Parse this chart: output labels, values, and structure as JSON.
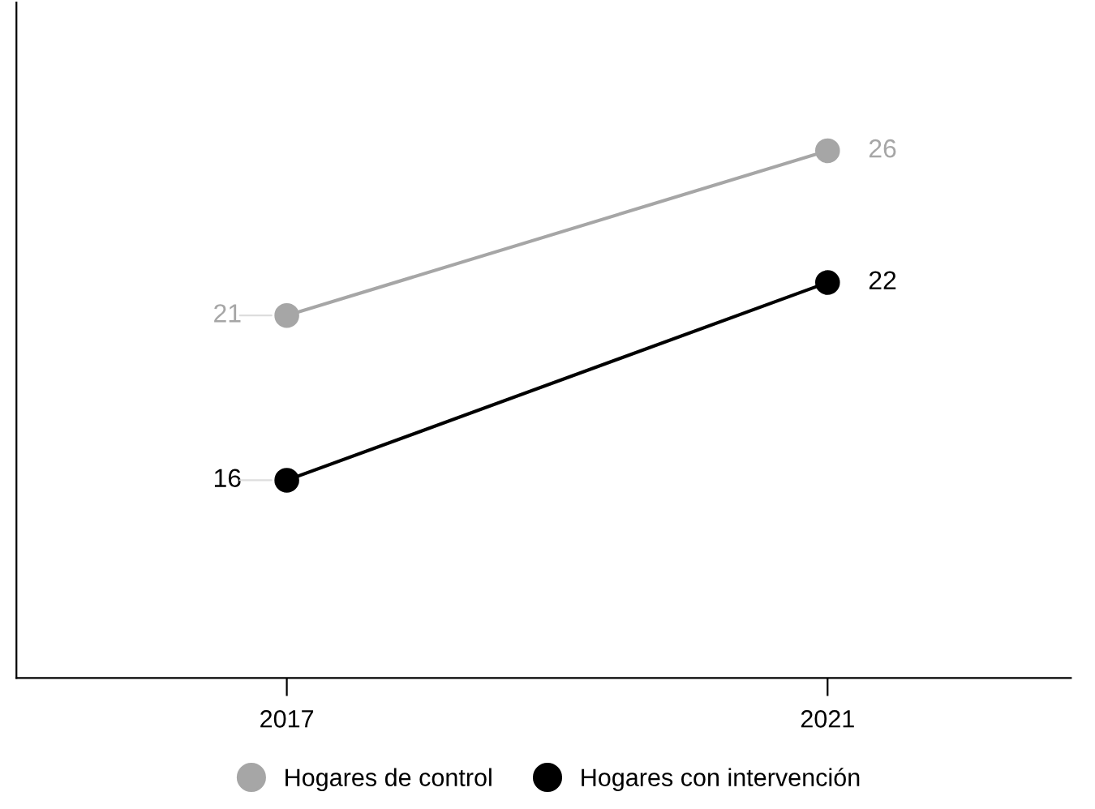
{
  "chart_data": {
    "type": "line",
    "categories": [
      "2017",
      "2021"
    ],
    "series": [
      {
        "name": "Hogares de control",
        "color": "#a6a6a6",
        "values": [
          21,
          26
        ]
      },
      {
        "name": "Hogares con intervención",
        "color": "#000000",
        "values": [
          16,
          22
        ]
      }
    ],
    "ylim": [
      10,
      30.5
    ],
    "tick_labels": "x",
    "data_labels": true,
    "marker": "circle",
    "line_style": "solid",
    "legend": "bottom",
    "grid": false
  }
}
